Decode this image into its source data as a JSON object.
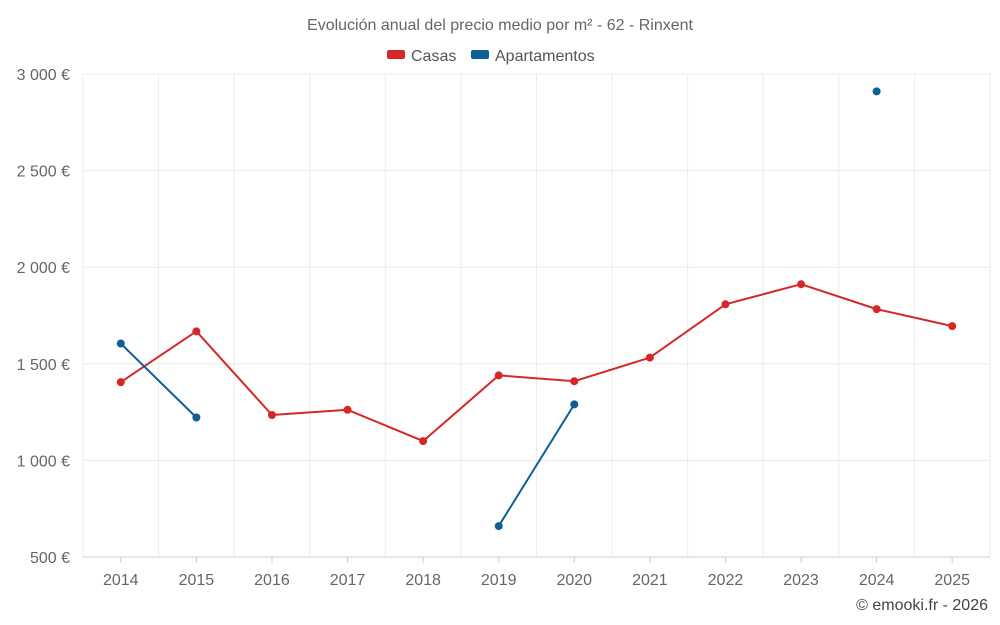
{
  "chart_data": {
    "type": "line",
    "title": "Evolución anual del precio medio por m² - 62 - Rinxent",
    "xlabel": "",
    "ylabel": "",
    "categories": [
      "2014",
      "2015",
      "2016",
      "2017",
      "2018",
      "2019",
      "2020",
      "2021",
      "2022",
      "2023",
      "2024",
      "2025"
    ],
    "ylim": [
      500,
      3000
    ],
    "y_ticks": [
      500,
      1000,
      1500,
      2000,
      2500,
      3000
    ],
    "y_tick_labels": [
      "500 €",
      "1 000 €",
      "1 500 €",
      "2 000 €",
      "2 500 €",
      "3 000 €"
    ],
    "grid": true,
    "legend_position": "top-center",
    "series": [
      {
        "name": "Casas",
        "color": "#d62728",
        "values": [
          1405,
          1668,
          1235,
          1262,
          1100,
          1440,
          1410,
          1532,
          1808,
          1912,
          1783,
          1695
        ]
      },
      {
        "name": "Apartamentos",
        "color": "#0e5f96",
        "values": [
          1605,
          1222,
          null,
          null,
          null,
          660,
          1290,
          null,
          null,
          null,
          2910,
          null
        ]
      }
    ]
  },
  "credit": "© emooki.fr - 2026"
}
